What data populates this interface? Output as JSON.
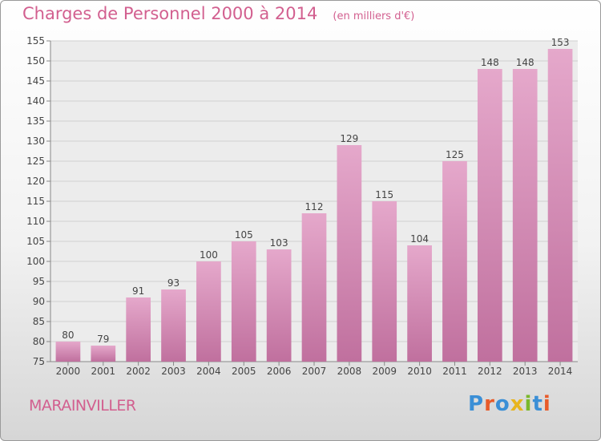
{
  "header": {
    "title": "Charges de Personnel 2000 à 2014",
    "subtitle": "(en milliers d'€)"
  },
  "footer": {
    "commune": "MARAINVILLER",
    "logo_text": "Proxiti",
    "logo_colors": [
      "#3b8fd6",
      "#e85b2a",
      "#3b8fd6",
      "#e8b51e",
      "#7ab82c",
      "#3b8fd6",
      "#e85b2a"
    ]
  },
  "chart_data": {
    "type": "bar",
    "categories": [
      "2000",
      "2001",
      "2002",
      "2003",
      "2004",
      "2005",
      "2006",
      "2007",
      "2008",
      "2009",
      "2010",
      "2011",
      "2012",
      "2013",
      "2014"
    ],
    "values": [
      80,
      79,
      91,
      93,
      100,
      105,
      103,
      112,
      129,
      115,
      104,
      125,
      148,
      148,
      153
    ],
    "ylim": [
      75,
      155
    ],
    "yticks": [
      75,
      80,
      85,
      90,
      95,
      100,
      105,
      110,
      115,
      120,
      125,
      130,
      135,
      140,
      145,
      150,
      155
    ],
    "grid": true,
    "bar_color": "#c0709e",
    "bar_color_light": "#e5a8cb"
  }
}
